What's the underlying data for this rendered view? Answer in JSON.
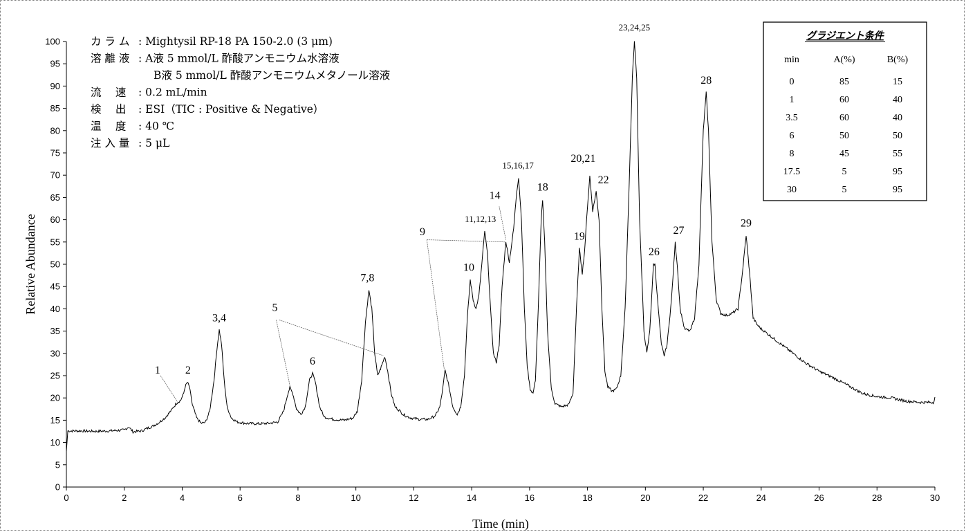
{
  "chart_data": {
    "type": "line",
    "title": "",
    "xlabel": "Time (min)",
    "ylabel": "Relative Abundance",
    "xlim": [
      0,
      30
    ],
    "ylim": [
      0,
      100
    ],
    "xticks": [
      "0",
      "2",
      "4",
      "6",
      "8",
      "10",
      "12",
      "14",
      "16",
      "18",
      "20",
      "22",
      "24",
      "26",
      "28",
      "30"
    ],
    "yticks": [
      "0",
      "5",
      "10",
      "15",
      "20",
      "25",
      "30",
      "35",
      "40",
      "45",
      "50",
      "55",
      "60",
      "65",
      "70",
      "75",
      "80",
      "85",
      "90",
      "95",
      "100"
    ],
    "baseline": [
      [
        0,
        8
      ],
      [
        0.05,
        12.6
      ],
      [
        0.5,
        12.6
      ],
      [
        1,
        12.5
      ],
      [
        1.5,
        12.6
      ],
      [
        2,
        12.8
      ],
      [
        2.15,
        13.5
      ],
      [
        2.3,
        12.4
      ],
      [
        2.6,
        12.6
      ],
      [
        2.8,
        13.2
      ],
      [
        3,
        13.7
      ],
      [
        3.2,
        14.5
      ],
      [
        3.4,
        15.5
      ],
      [
        3.6,
        17
      ],
      [
        3.8,
        18.8
      ],
      [
        3.95,
        19.5
      ],
      [
        4.05,
        21
      ],
      [
        4.1,
        22.5
      ],
      [
        4.18,
        23.5
      ],
      [
        4.25,
        22.5
      ],
      [
        4.35,
        18.5
      ],
      [
        4.5,
        15.5
      ],
      [
        4.65,
        14.3
      ],
      [
        4.8,
        14.5
      ],
      [
        4.95,
        17
      ],
      [
        5.1,
        24
      ],
      [
        5.2,
        31
      ],
      [
        5.28,
        35.3
      ],
      [
        5.36,
        32
      ],
      [
        5.45,
        24
      ],
      [
        5.55,
        18
      ],
      [
        5.7,
        15.5
      ],
      [
        5.9,
        14.6
      ],
      [
        6.2,
        14.3
      ],
      [
        6.6,
        14.2
      ],
      [
        7,
        14.3
      ],
      [
        7.3,
        14.6
      ],
      [
        7.5,
        17
      ],
      [
        7.65,
        21
      ],
      [
        7.72,
        22.3
      ],
      [
        7.82,
        21
      ],
      [
        7.95,
        17.5
      ],
      [
        8.1,
        16.3
      ],
      [
        8.25,
        18
      ],
      [
        8.4,
        24
      ],
      [
        8.5,
        25.5
      ],
      [
        8.6,
        23.5
      ],
      [
        8.75,
        18
      ],
      [
        8.9,
        15.8
      ],
      [
        9.2,
        15.2
      ],
      [
        9.6,
        15
      ],
      [
        9.9,
        15.5
      ],
      [
        10.05,
        17
      ],
      [
        10.2,
        24
      ],
      [
        10.33,
        37
      ],
      [
        10.45,
        44.2
      ],
      [
        10.55,
        40
      ],
      [
        10.65,
        30
      ],
      [
        10.75,
        25
      ],
      [
        10.85,
        26.5
      ],
      [
        11,
        29.3
      ],
      [
        11.1,
        26
      ],
      [
        11.22,
        21
      ],
      [
        11.35,
        18
      ],
      [
        11.5,
        17.2
      ],
      [
        11.65,
        16.2
      ],
      [
        11.9,
        15.5
      ],
      [
        12.2,
        15.2
      ],
      [
        12.5,
        15.2
      ],
      [
        12.75,
        16
      ],
      [
        12.9,
        18
      ],
      [
        13,
        22
      ],
      [
        13.08,
        26.2
      ],
      [
        13.2,
        23
      ],
      [
        13.35,
        18
      ],
      [
        13.5,
        16.3
      ],
      [
        13.62,
        18
      ],
      [
        13.75,
        25
      ],
      [
        13.85,
        38
      ],
      [
        13.95,
        46.5
      ],
      [
        14.05,
        42
      ],
      [
        14.15,
        40
      ],
      [
        14.25,
        43
      ],
      [
        14.35,
        50
      ],
      [
        14.45,
        57.5
      ],
      [
        14.55,
        52
      ],
      [
        14.65,
        40
      ],
      [
        14.75,
        30
      ],
      [
        14.85,
        28
      ],
      [
        14.95,
        32
      ],
      [
        15.05,
        45
      ],
      [
        15.18,
        55.2
      ],
      [
        15.3,
        50.5
      ],
      [
        15.45,
        58
      ],
      [
        15.55,
        66
      ],
      [
        15.62,
        69.5
      ],
      [
        15.72,
        60
      ],
      [
        15.82,
        40
      ],
      [
        15.92,
        27
      ],
      [
        16.02,
        22
      ],
      [
        16.12,
        21
      ],
      [
        16.2,
        24
      ],
      [
        16.3,
        40
      ],
      [
        16.4,
        60
      ],
      [
        16.45,
        64.5
      ],
      [
        16.52,
        55
      ],
      [
        16.62,
        35
      ],
      [
        16.75,
        22
      ],
      [
        16.88,
        18.7
      ],
      [
        17.1,
        18
      ],
      [
        17.35,
        18.5
      ],
      [
        17.5,
        21
      ],
      [
        17.62,
        40
      ],
      [
        17.72,
        53.5
      ],
      [
        17.82,
        48
      ],
      [
        17.9,
        53
      ],
      [
        18.0,
        63
      ],
      [
        18.08,
        69.8
      ],
      [
        18.18,
        62
      ],
      [
        18.3,
        66.3
      ],
      [
        18.4,
        60
      ],
      [
        18.5,
        40
      ],
      [
        18.6,
        26
      ],
      [
        18.7,
        22.5
      ],
      [
        18.85,
        21.5
      ],
      [
        19.0,
        22
      ],
      [
        19.15,
        25
      ],
      [
        19.3,
        40
      ],
      [
        19.45,
        70
      ],
      [
        19.55,
        92
      ],
      [
        19.62,
        100
      ],
      [
        19.7,
        92
      ],
      [
        19.8,
        60
      ],
      [
        19.95,
        35
      ],
      [
        20.05,
        30
      ],
      [
        20.15,
        35
      ],
      [
        20.28,
        50
      ],
      [
        20.33,
        50
      ],
      [
        20.42,
        42
      ],
      [
        20.55,
        32
      ],
      [
        20.65,
        29.5
      ],
      [
        20.75,
        32
      ],
      [
        20.9,
        42
      ],
      [
        21.03,
        54.8
      ],
      [
        21.1,
        50
      ],
      [
        21.2,
        40
      ],
      [
        21.35,
        35.5
      ],
      [
        21.55,
        35
      ],
      [
        21.7,
        38
      ],
      [
        21.85,
        50
      ],
      [
        22.0,
        80
      ],
      [
        22.1,
        88.5
      ],
      [
        22.18,
        80
      ],
      [
        22.3,
        55
      ],
      [
        22.45,
        42
      ],
      [
        22.6,
        39
      ],
      [
        22.8,
        38.5
      ],
      [
        23.0,
        39
      ],
      [
        23.2,
        40
      ],
      [
        23.35,
        48
      ],
      [
        23.48,
        56.5
      ],
      [
        23.6,
        48
      ],
      [
        23.72,
        38
      ],
      [
        23.85,
        36.5
      ],
      [
        24,
        35.5
      ],
      [
        24.5,
        33
      ],
      [
        25,
        30.5
      ],
      [
        25.5,
        28
      ],
      [
        26,
        26
      ],
      [
        26.5,
        24.5
      ],
      [
        27,
        22.8
      ],
      [
        27.5,
        21
      ],
      [
        28,
        20.3
      ],
      [
        28.5,
        20
      ],
      [
        29,
        19.3
      ],
      [
        29.5,
        19
      ],
      [
        29.95,
        19
      ],
      [
        30,
        20.2
      ]
    ],
    "peak_labels": [
      {
        "label": "1",
        "x": 3.15,
        "y": 25.5
      },
      {
        "label": "2",
        "x": 4.2,
        "y": 25.5
      },
      {
        "label": "3,4",
        "x": 5.28,
        "y": 37.2
      },
      {
        "label": "5",
        "x": 7.2,
        "y": 39.5
      },
      {
        "label": "6",
        "x": 8.5,
        "y": 27.5
      },
      {
        "label": "7,8",
        "x": 10.4,
        "y": 46.2
      },
      {
        "label": "9",
        "x": 12.3,
        "y": 56.5
      },
      {
        "label": "10",
        "x": 13.9,
        "y": 48.5
      },
      {
        "label": "11,12,13",
        "x": 14.3,
        "y": 59.5
      },
      {
        "label": "14",
        "x": 14.8,
        "y": 64.7
      },
      {
        "label": "15,16,17",
        "x": 15.6,
        "y": 71.5
      },
      {
        "label": "18",
        "x": 16.45,
        "y": 66.5
      },
      {
        "label": "19",
        "x": 17.72,
        "y": 55.5
      },
      {
        "label": "20,21",
        "x": 17.85,
        "y": 73
      },
      {
        "label": "22",
        "x": 18.55,
        "y": 68.2
      },
      {
        "label": "23,24,25",
        "x": 19.62,
        "y": 102.5
      },
      {
        "label": "26",
        "x": 20.3,
        "y": 52
      },
      {
        "label": "27",
        "x": 21.15,
        "y": 56.8
      },
      {
        "label": "28",
        "x": 22.1,
        "y": 90.5
      },
      {
        "label": "29",
        "x": 23.48,
        "y": 58.5
      }
    ]
  },
  "conditions": {
    "rows": [
      {
        "label": "カ ラ ム",
        "value": ": Mightysil RP-18 PA 150-2.0 (3 μm)"
      },
      {
        "label": "溶 離 液",
        "value": ": A液 5 mmol/L 酢酸アンモニウム水溶液"
      },
      {
        "label": "",
        "value": "B液 5 mmol/L 酢酸アンモニウムメタノール溶液"
      },
      {
        "label": "流　 速",
        "value": ": 0.2 mL/min"
      },
      {
        "label": "検　 出",
        "value": ": ESI（TIC : Positive & Negative）"
      },
      {
        "label": "温　 度",
        "value": ": 40 ℃"
      },
      {
        "label": "注 入 量",
        "value": ": 5 μL"
      }
    ]
  },
  "gradient_table": {
    "title": "グラジエント条件",
    "headers": [
      "min",
      "A(%)",
      "B(%)"
    ],
    "rows": [
      [
        "0",
        "85",
        "15"
      ],
      [
        "1",
        "60",
        "40"
      ],
      [
        "3.5",
        "60",
        "40"
      ],
      [
        "6",
        "50",
        "50"
      ],
      [
        "8",
        "45",
        "55"
      ],
      [
        "17.5",
        "5",
        "95"
      ],
      [
        "30",
        "5",
        "95"
      ]
    ]
  }
}
